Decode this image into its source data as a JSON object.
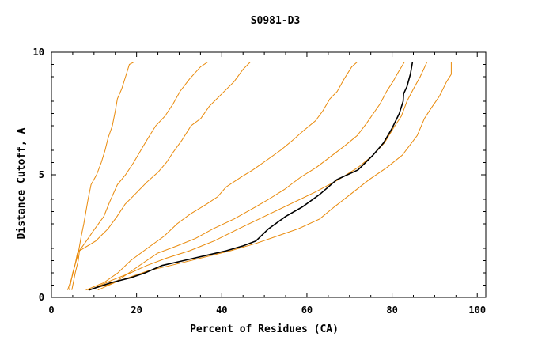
{
  "chart_data": {
    "type": "line",
    "title": "S0981-D3",
    "xlabel": "Percent of Residues (CA)",
    "ylabel": "Distance Cutoff, A",
    "xlim": [
      0,
      102
    ],
    "ylim": [
      0,
      10
    ],
    "xticks": [
      0,
      20,
      40,
      60,
      80,
      100
    ],
    "yticks": [
      0,
      5,
      10
    ],
    "grid": false,
    "colors": {
      "reference": "#E98A0B",
      "highlight": "#000000"
    },
    "series": [
      {
        "values": [
          [
            4.2,
            0.3
          ],
          [
            5.0,
            1.0
          ],
          [
            6.0,
            1.6
          ],
          [
            6.5,
            2.0
          ],
          [
            7.0,
            2.5
          ],
          [
            7.6,
            3.0
          ],
          [
            8.1,
            3.5
          ],
          [
            8.6,
            4.0
          ],
          [
            9.3,
            4.6
          ],
          [
            10.6,
            5.0
          ],
          [
            11.7,
            5.5
          ],
          [
            12.6,
            6.0
          ],
          [
            13.3,
            6.5
          ],
          [
            14.3,
            7.0
          ],
          [
            15.0,
            7.6
          ],
          [
            15.5,
            8.1
          ],
          [
            16.5,
            8.5
          ],
          [
            17.4,
            9.0
          ],
          [
            18.3,
            9.5
          ],
          [
            19.4,
            9.6
          ]
        ]
      },
      {
        "values": [
          [
            3.8,
            0.3
          ],
          [
            4.8,
            0.8
          ],
          [
            5.5,
            1.3
          ],
          [
            6.1,
            1.8
          ],
          [
            7.8,
            2.2
          ],
          [
            10.2,
            2.8
          ],
          [
            12.3,
            3.3
          ],
          [
            13.7,
            3.9
          ],
          [
            15.5,
            4.6
          ],
          [
            17.4,
            5.0
          ],
          [
            19.3,
            5.5
          ],
          [
            21.0,
            6.0
          ],
          [
            22.7,
            6.5
          ],
          [
            24.5,
            7.0
          ],
          [
            26.7,
            7.4
          ],
          [
            28.6,
            7.9
          ],
          [
            30.2,
            8.4
          ],
          [
            32.4,
            8.9
          ],
          [
            35.0,
            9.4
          ],
          [
            36.7,
            9.6
          ]
        ]
      },
      {
        "values": [
          [
            4.8,
            0.3
          ],
          [
            5.6,
            1.0
          ],
          [
            6.3,
            1.5
          ],
          [
            6.6,
            1.9
          ],
          [
            10.4,
            2.3
          ],
          [
            13.3,
            2.8
          ],
          [
            15.4,
            3.3
          ],
          [
            17.3,
            3.8
          ],
          [
            19.6,
            4.2
          ],
          [
            22.4,
            4.7
          ],
          [
            25.0,
            5.1
          ],
          [
            27.0,
            5.5
          ],
          [
            28.5,
            5.9
          ],
          [
            30.6,
            6.4
          ],
          [
            32.8,
            7.0
          ],
          [
            35.1,
            7.3
          ],
          [
            37.1,
            7.8
          ],
          [
            40.0,
            8.3
          ],
          [
            42.9,
            8.8
          ],
          [
            45.0,
            9.3
          ],
          [
            46.7,
            9.6
          ]
        ]
      },
      {
        "values": [
          [
            8.1,
            0.3
          ],
          [
            12.3,
            0.6
          ],
          [
            15.6,
            1.0
          ],
          [
            18.6,
            1.5
          ],
          [
            22.5,
            2.0
          ],
          [
            26.5,
            2.5
          ],
          [
            29.5,
            3.0
          ],
          [
            32.6,
            3.4
          ],
          [
            36.4,
            3.8
          ],
          [
            39.0,
            4.1
          ],
          [
            41.0,
            4.5
          ],
          [
            44.5,
            4.9
          ],
          [
            47.3,
            5.2
          ],
          [
            50.6,
            5.6
          ],
          [
            53.8,
            6.0
          ],
          [
            56.6,
            6.4
          ],
          [
            59.2,
            6.8
          ],
          [
            62.0,
            7.2
          ],
          [
            63.7,
            7.6
          ],
          [
            65.4,
            8.1
          ],
          [
            67.1,
            8.4
          ],
          [
            68.7,
            8.9
          ],
          [
            70.5,
            9.4
          ],
          [
            71.8,
            9.6
          ]
        ]
      },
      {
        "values": [
          [
            10.9,
            0.3
          ],
          [
            14.8,
            0.6
          ],
          [
            18.2,
            1.0
          ],
          [
            21.5,
            1.4
          ],
          [
            24.9,
            1.8
          ],
          [
            29.5,
            2.1
          ],
          [
            33.8,
            2.4
          ],
          [
            38.0,
            2.8
          ],
          [
            42.9,
            3.2
          ],
          [
            47.0,
            3.6
          ],
          [
            51.0,
            4.0
          ],
          [
            54.7,
            4.4
          ],
          [
            58.5,
            4.9
          ],
          [
            62.2,
            5.3
          ],
          [
            66.0,
            5.8
          ],
          [
            69.0,
            6.2
          ],
          [
            71.8,
            6.6
          ],
          [
            74.0,
            7.1
          ],
          [
            75.6,
            7.5
          ],
          [
            77.2,
            7.9
          ],
          [
            78.7,
            8.4
          ],
          [
            80.2,
            8.8
          ],
          [
            81.5,
            9.2
          ],
          [
            82.9,
            9.6
          ]
        ]
      },
      {
        "values": [
          [
            9.0,
            0.3
          ],
          [
            14.2,
            0.7
          ],
          [
            18.6,
            1.0
          ],
          [
            22.4,
            1.3
          ],
          [
            27.0,
            1.6
          ],
          [
            32.4,
            1.9
          ],
          [
            38.2,
            2.3
          ],
          [
            44.0,
            2.8
          ],
          [
            50.0,
            3.3
          ],
          [
            56.0,
            3.8
          ],
          [
            62.0,
            4.3
          ],
          [
            67.4,
            4.8
          ],
          [
            72.0,
            5.3
          ],
          [
            75.5,
            5.8
          ],
          [
            78.2,
            6.3
          ],
          [
            80.3,
            6.9
          ],
          [
            82.2,
            7.4
          ],
          [
            83.5,
            8.0
          ],
          [
            85.0,
            8.5
          ],
          [
            86.6,
            9.0
          ],
          [
            88.2,
            9.6
          ]
        ]
      },
      {
        "values": [
          [
            8.5,
            0.3
          ],
          [
            13.0,
            0.5
          ],
          [
            18.0,
            0.8
          ],
          [
            23.0,
            1.1
          ],
          [
            28.0,
            1.3
          ],
          [
            35.0,
            1.6
          ],
          [
            42.0,
            1.9
          ],
          [
            48.0,
            2.2
          ],
          [
            53.0,
            2.5
          ],
          [
            58.0,
            2.8
          ],
          [
            63.0,
            3.2
          ],
          [
            66.5,
            3.7
          ],
          [
            70.2,
            4.2
          ],
          [
            74.6,
            4.8
          ],
          [
            78.8,
            5.3
          ],
          [
            82.4,
            5.8
          ],
          [
            85.9,
            6.6
          ],
          [
            87.6,
            7.3
          ],
          [
            89.1,
            7.7
          ],
          [
            91.1,
            8.2
          ],
          [
            92.8,
            8.8
          ],
          [
            93.9,
            9.1
          ],
          [
            93.9,
            9.6
          ]
        ]
      },
      {
        "highlight": true,
        "values": [
          [
            8.8,
            0.3
          ],
          [
            14.0,
            0.6
          ],
          [
            18.6,
            0.8
          ],
          [
            22.0,
            1.0
          ],
          [
            26.0,
            1.3
          ],
          [
            31.0,
            1.5
          ],
          [
            36.0,
            1.7
          ],
          [
            41.0,
            1.9
          ],
          [
            45.0,
            2.1
          ],
          [
            48.0,
            2.3
          ],
          [
            51.0,
            2.8
          ],
          [
            55.0,
            3.3
          ],
          [
            59.0,
            3.7
          ],
          [
            63.0,
            4.2
          ],
          [
            67.0,
            4.8
          ],
          [
            72.0,
            5.2
          ],
          [
            75.5,
            5.8
          ],
          [
            78.0,
            6.3
          ],
          [
            80.0,
            6.9
          ],
          [
            81.7,
            7.5
          ],
          [
            82.6,
            8.0
          ],
          [
            82.7,
            8.3
          ],
          [
            83.5,
            8.6
          ],
          [
            84.3,
            9.1
          ],
          [
            84.8,
            9.6
          ]
        ]
      }
    ]
  }
}
